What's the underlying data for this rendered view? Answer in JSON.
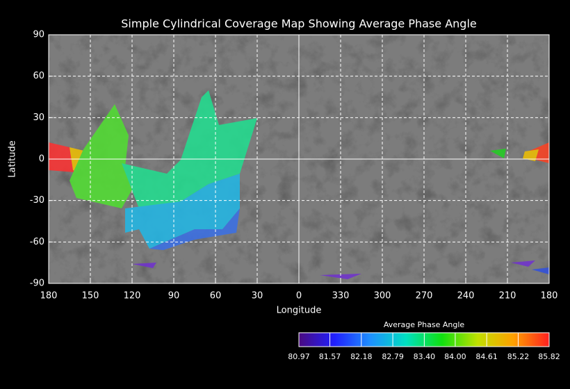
{
  "chart_data": {
    "type": "map",
    "title": "Simple Cylindrical Coverage Map Showing Average Phase Angle",
    "x_label": "Longitude",
    "y_label": "Latitude",
    "xlim": [
      180,
      -180
    ],
    "ylim": [
      -90,
      90
    ],
    "xticks": [
      180,
      150,
      120,
      90,
      60,
      30,
      0,
      {
        "value": -30,
        "label": "330"
      },
      {
        "value": -60,
        "label": "300"
      },
      {
        "value": -90,
        "label": "270"
      },
      {
        "value": -120,
        "label": "240"
      },
      {
        "value": -150,
        "label": "210"
      },
      {
        "value": -180,
        "label": "180"
      }
    ],
    "yticks": [
      90,
      60,
      30,
      0,
      -30,
      -60,
      -90
    ],
    "grid": true,
    "colorbar": {
      "title": "Average Phase Angle",
      "lim": [
        80.97,
        85.82
      ],
      "colors": [
        "#4a0a80",
        "#2020ff",
        "#1e90ff",
        "#00e0c0",
        "#10e010",
        "#c0e000",
        "#ffa000",
        "#ff2020"
      ],
      "ticks": [
        80.97,
        81.57,
        82.18,
        82.79,
        {
          "value": 83.4,
          "label": "83.40"
        },
        {
          "value": 84,
          "label": "84.00"
        },
        84.61,
        85.22,
        85.82
      ]
    }
  }
}
